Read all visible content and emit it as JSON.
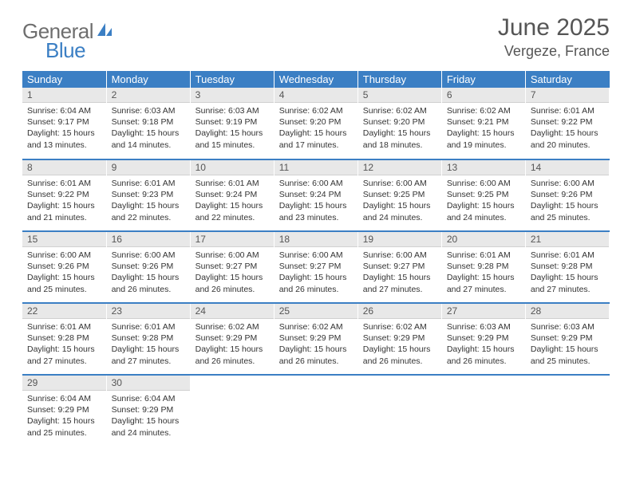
{
  "logo": {
    "part1": "General",
    "part2": "Blue"
  },
  "title": "June 2025",
  "location": "Vergeze, France",
  "styling": {
    "page_bg": "#ffffff",
    "header_color": "#555555",
    "day_header_bg": "#3b7fc4",
    "day_header_fg": "#ffffff",
    "daynum_bg": "#e8e8e8",
    "row_divider": "#3b7fc4",
    "body_text": "#333333",
    "logo_gray": "#6e6e6e",
    "logo_blue": "#3b7fc4",
    "title_fontsize": 30,
    "location_fontsize": 18,
    "cell_fontsize": 10.5,
    "columns": 7,
    "rows": 5
  },
  "weekdays": [
    "Sunday",
    "Monday",
    "Tuesday",
    "Wednesday",
    "Thursday",
    "Friday",
    "Saturday"
  ],
  "days": [
    {
      "n": "1",
      "sunrise": "6:04 AM",
      "sunset": "9:17 PM",
      "dl": "15 hours and 13 minutes."
    },
    {
      "n": "2",
      "sunrise": "6:03 AM",
      "sunset": "9:18 PM",
      "dl": "15 hours and 14 minutes."
    },
    {
      "n": "3",
      "sunrise": "6:03 AM",
      "sunset": "9:19 PM",
      "dl": "15 hours and 15 minutes."
    },
    {
      "n": "4",
      "sunrise": "6:02 AM",
      "sunset": "9:20 PM",
      "dl": "15 hours and 17 minutes."
    },
    {
      "n": "5",
      "sunrise": "6:02 AM",
      "sunset": "9:20 PM",
      "dl": "15 hours and 18 minutes."
    },
    {
      "n": "6",
      "sunrise": "6:02 AM",
      "sunset": "9:21 PM",
      "dl": "15 hours and 19 minutes."
    },
    {
      "n": "7",
      "sunrise": "6:01 AM",
      "sunset": "9:22 PM",
      "dl": "15 hours and 20 minutes."
    },
    {
      "n": "8",
      "sunrise": "6:01 AM",
      "sunset": "9:22 PM",
      "dl": "15 hours and 21 minutes."
    },
    {
      "n": "9",
      "sunrise": "6:01 AM",
      "sunset": "9:23 PM",
      "dl": "15 hours and 22 minutes."
    },
    {
      "n": "10",
      "sunrise": "6:01 AM",
      "sunset": "9:24 PM",
      "dl": "15 hours and 22 minutes."
    },
    {
      "n": "11",
      "sunrise": "6:00 AM",
      "sunset": "9:24 PM",
      "dl": "15 hours and 23 minutes."
    },
    {
      "n": "12",
      "sunrise": "6:00 AM",
      "sunset": "9:25 PM",
      "dl": "15 hours and 24 minutes."
    },
    {
      "n": "13",
      "sunrise": "6:00 AM",
      "sunset": "9:25 PM",
      "dl": "15 hours and 24 minutes."
    },
    {
      "n": "14",
      "sunrise": "6:00 AM",
      "sunset": "9:26 PM",
      "dl": "15 hours and 25 minutes."
    },
    {
      "n": "15",
      "sunrise": "6:00 AM",
      "sunset": "9:26 PM",
      "dl": "15 hours and 25 minutes."
    },
    {
      "n": "16",
      "sunrise": "6:00 AM",
      "sunset": "9:26 PM",
      "dl": "15 hours and 26 minutes."
    },
    {
      "n": "17",
      "sunrise": "6:00 AM",
      "sunset": "9:27 PM",
      "dl": "15 hours and 26 minutes."
    },
    {
      "n": "18",
      "sunrise": "6:00 AM",
      "sunset": "9:27 PM",
      "dl": "15 hours and 26 minutes."
    },
    {
      "n": "19",
      "sunrise": "6:00 AM",
      "sunset": "9:27 PM",
      "dl": "15 hours and 27 minutes."
    },
    {
      "n": "20",
      "sunrise": "6:01 AM",
      "sunset": "9:28 PM",
      "dl": "15 hours and 27 minutes."
    },
    {
      "n": "21",
      "sunrise": "6:01 AM",
      "sunset": "9:28 PM",
      "dl": "15 hours and 27 minutes."
    },
    {
      "n": "22",
      "sunrise": "6:01 AM",
      "sunset": "9:28 PM",
      "dl": "15 hours and 27 minutes."
    },
    {
      "n": "23",
      "sunrise": "6:01 AM",
      "sunset": "9:28 PM",
      "dl": "15 hours and 27 minutes."
    },
    {
      "n": "24",
      "sunrise": "6:02 AM",
      "sunset": "9:29 PM",
      "dl": "15 hours and 26 minutes."
    },
    {
      "n": "25",
      "sunrise": "6:02 AM",
      "sunset": "9:29 PM",
      "dl": "15 hours and 26 minutes."
    },
    {
      "n": "26",
      "sunrise": "6:02 AM",
      "sunset": "9:29 PM",
      "dl": "15 hours and 26 minutes."
    },
    {
      "n": "27",
      "sunrise": "6:03 AM",
      "sunset": "9:29 PM",
      "dl": "15 hours and 26 minutes."
    },
    {
      "n": "28",
      "sunrise": "6:03 AM",
      "sunset": "9:29 PM",
      "dl": "15 hours and 25 minutes."
    },
    {
      "n": "29",
      "sunrise": "6:04 AM",
      "sunset": "9:29 PM",
      "dl": "15 hours and 25 minutes."
    },
    {
      "n": "30",
      "sunrise": "6:04 AM",
      "sunset": "9:29 PM",
      "dl": "15 hours and 24 minutes."
    }
  ],
  "labels": {
    "sunrise": "Sunrise:",
    "sunset": "Sunset:",
    "daylight": "Daylight:"
  }
}
